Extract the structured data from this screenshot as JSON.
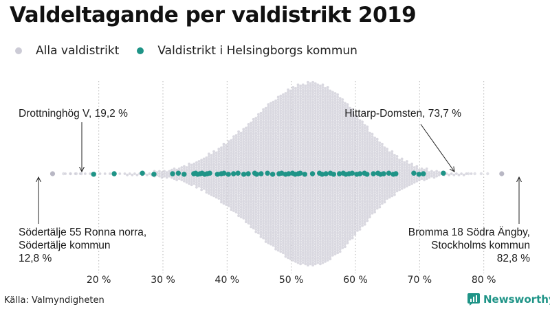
{
  "chart_data": {
    "type": "scatter",
    "subtype": "beeswarm",
    "title": "Valdeltagande per valdistrikt 2019",
    "xlabel": "",
    "ylabel": "",
    "xlim": [
      10.5,
      85.5
    ],
    "ticks": [
      20,
      30,
      40,
      50,
      60,
      70,
      80
    ],
    "tick_labels": [
      "20 %",
      "30 %",
      "40 %",
      "50 %",
      "60 %",
      "70 %",
      "80 %"
    ],
    "legend_position": "top-left",
    "series": [
      {
        "name": "Alla valdistrikt",
        "color": "#cccbd6",
        "distribution": "dense swarm of all electoral districts, peak around 53 %",
        "min": 12.8,
        "max": 82.8
      },
      {
        "name": "Valdistrikt i Helsingborgs kommun",
        "color": "#1f9487",
        "values": [
          19.2,
          22.4,
          26.8,
          28.6,
          31.5,
          32.4,
          33.3,
          34.8,
          35.1,
          35.4,
          35.8,
          36.1,
          36.5,
          36.9,
          37.3,
          38.5,
          39.1,
          39.5,
          40.2,
          41.0,
          41.7,
          42.6,
          43.3,
          44.3,
          44.6,
          45.3,
          46.3,
          47.1,
          48.1,
          48.5,
          49.1,
          49.6,
          50.2,
          50.6,
          51.1,
          51.4,
          52.1,
          53.3,
          54.4,
          54.8,
          55.4,
          56.1,
          56.6,
          57.5,
          58.1,
          58.5,
          59.0,
          59.5,
          60.2,
          60.7,
          61.4,
          61.8,
          62.8,
          63.5,
          63.9,
          64.4,
          65.2,
          65.9,
          66.3,
          69.1,
          69.9,
          70.6,
          73.7
        ]
      }
    ],
    "annotations": [
      {
        "id": "drottninghog",
        "lines": [
          "Drottninghög V, 19,2 %"
        ],
        "value": 19.2
      },
      {
        "id": "hittarp",
        "lines": [
          "Hittarp-Domsten, 73,7 %"
        ],
        "value": 73.7
      },
      {
        "id": "sodertalje",
        "lines": [
          "Södertälje 55 Ronna norra,",
          "Södertälje kommun",
          "12,8 %"
        ],
        "value": 12.8
      },
      {
        "id": "bromma",
        "lines": [
          "Bromma 18 Södra Ängby,",
          "Stockholms kommun",
          "82,8 %"
        ],
        "value": 82.8
      }
    ]
  },
  "legend": {
    "all_label": "Alla valdistrikt",
    "helsingborg_label": "Valdistrikt i Helsingborgs kommun"
  },
  "footer": {
    "source": "Källa: Valmyndigheten",
    "brand": "Newsworthy"
  },
  "colors": {
    "all": "#cccbd6",
    "helsingborg": "#1f9487",
    "grid": "#b5b5b5",
    "brand": "#1f9487"
  }
}
